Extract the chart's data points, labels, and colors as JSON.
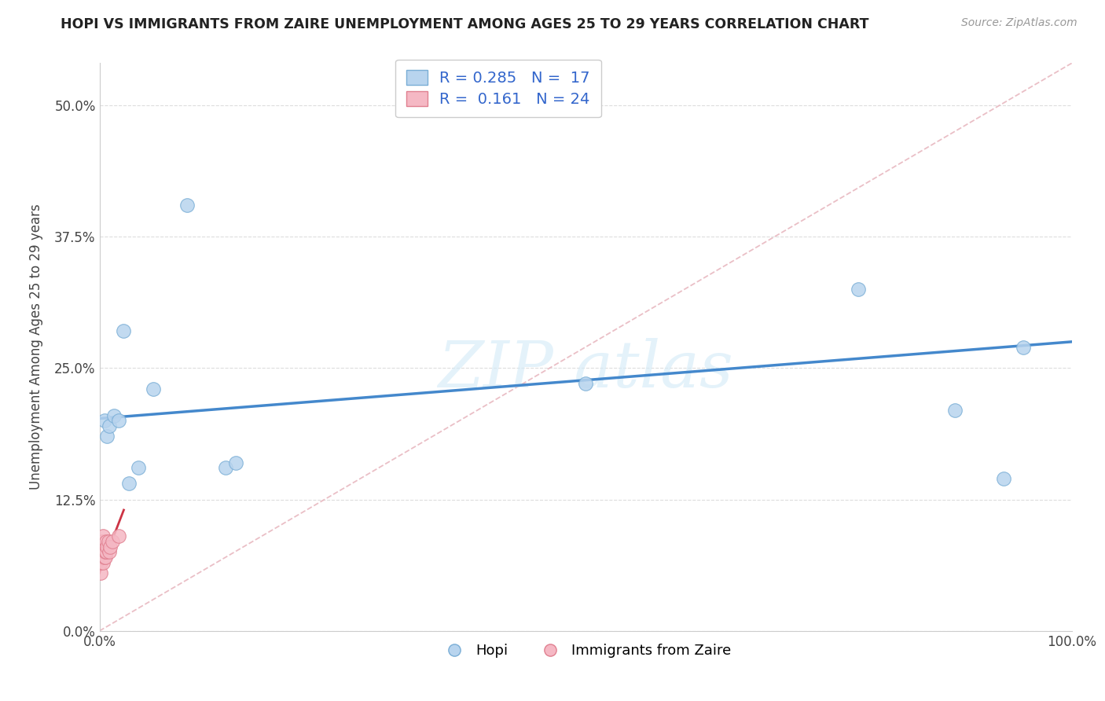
{
  "title": "HOPI VS IMMIGRANTS FROM ZAIRE UNEMPLOYMENT AMONG AGES 25 TO 29 YEARS CORRELATION CHART",
  "source": "Source: ZipAtlas.com",
  "ylabel": "Unemployment Among Ages 25 to 29 years",
  "xlim": [
    0.0,
    1.0
  ],
  "ylim": [
    0.0,
    0.54
  ],
  "yticks": [
    0.0,
    0.125,
    0.25,
    0.375,
    0.5
  ],
  "yticklabels": [
    "0.0%",
    "12.5%",
    "25.0%",
    "37.5%",
    "50.0%"
  ],
  "xticks": [
    0.0,
    1.0
  ],
  "xticklabels": [
    "0.0%",
    "100.0%"
  ],
  "hopi_color": "#b8d4ee",
  "hopi_edge_color": "#7aaed6",
  "zaire_color": "#f5b8c4",
  "zaire_edge_color": "#e08090",
  "trendline_hopi_color": "#4488cc",
  "trendline_zaire_color": "#cc3344",
  "diagonal_color": "#e8b8c0",
  "legend_R_hopi": "0.285",
  "legend_N_hopi": "17",
  "legend_R_zaire": "0.161",
  "legend_N_zaire": "24",
  "hopi_x": [
    0.005,
    0.008,
    0.01,
    0.015,
    0.02,
    0.025,
    0.03,
    0.04,
    0.055,
    0.09,
    0.13,
    0.14,
    0.5,
    0.78,
    0.88,
    0.93,
    0.95
  ],
  "hopi_y": [
    0.2,
    0.185,
    0.195,
    0.205,
    0.2,
    0.285,
    0.14,
    0.155,
    0.23,
    0.405,
    0.155,
    0.16,
    0.235,
    0.325,
    0.21,
    0.145,
    0.27
  ],
  "zaire_x": [
    0.001,
    0.001,
    0.002,
    0.002,
    0.003,
    0.003,
    0.003,
    0.004,
    0.004,
    0.004,
    0.004,
    0.005,
    0.005,
    0.005,
    0.006,
    0.006,
    0.007,
    0.007,
    0.008,
    0.009,
    0.01,
    0.011,
    0.013,
    0.02
  ],
  "zaire_y": [
    0.055,
    0.065,
    0.075,
    0.08,
    0.07,
    0.075,
    0.085,
    0.065,
    0.075,
    0.08,
    0.09,
    0.07,
    0.075,
    0.08,
    0.07,
    0.075,
    0.075,
    0.085,
    0.08,
    0.085,
    0.075,
    0.08,
    0.085,
    0.09
  ],
  "background_color": "#ffffff",
  "grid_color": "#dddddd"
}
